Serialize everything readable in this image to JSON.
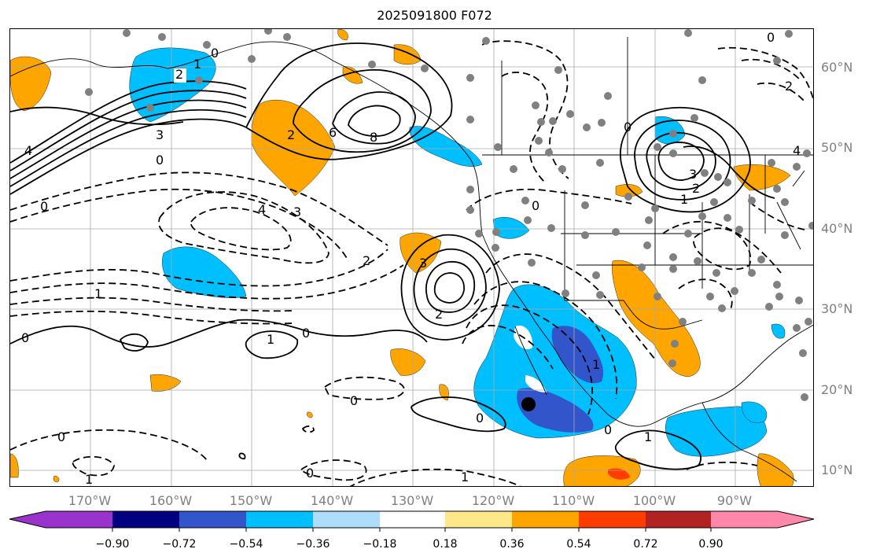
{
  "title": "2025091800 F072",
  "lat_labels": [
    "60°N",
    "50°N",
    "40°N",
    "30°N",
    "20°N",
    "10°N"
  ],
  "lon_labels": [
    "170°W",
    "160°W",
    "150°W",
    "140°W",
    "130°W",
    "120°W",
    "110°W",
    "100°W",
    "90°W"
  ],
  "colorbar": {
    "tick_labels": [
      "−0.90",
      "−0.72",
      "−0.54",
      "−0.36",
      "−0.18",
      "0.18",
      "0.36",
      "0.54",
      "0.72",
      "0.90"
    ],
    "colors": [
      "#9933cc",
      "#000080",
      "#3355cc",
      "#00bfff",
      "#aeddfb",
      "#ffffff",
      "#ffe88a",
      "#ffa500",
      "#ff3c00",
      "#b22222",
      "#ff88aa"
    ]
  },
  "contour_labels": [
    "0",
    "1",
    "2",
    "3",
    "4",
    "6",
    "8",
    "0",
    "2",
    "3",
    "4",
    "0",
    "1",
    "2",
    "3",
    "2",
    "0",
    "1",
    "3",
    "4",
    "2",
    "0",
    "1",
    "0",
    "1",
    "0",
    "0",
    "0",
    "1",
    "0",
    "0",
    "1",
    "0",
    "1",
    "2",
    "0"
  ],
  "marker_color": "#000000",
  "station_color": "#808080"
}
